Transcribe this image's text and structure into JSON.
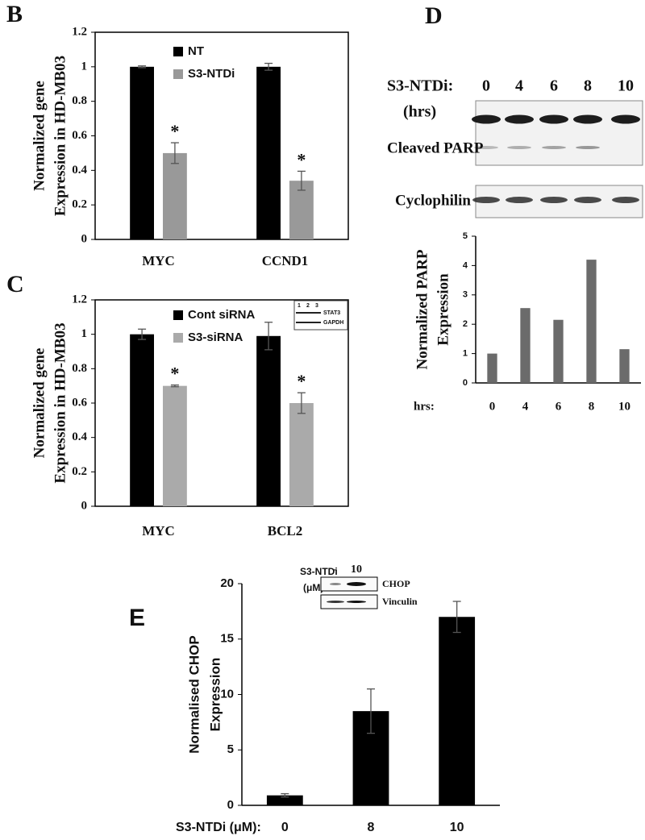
{
  "chart_data": [
    {
      "type": "bar",
      "panel": "B",
      "ylabel": [
        "Normalized gene",
        "Expression in HD-MB03"
      ],
      "categories": [
        "MYC",
        "CCND1"
      ],
      "series": [
        {
          "name": "NT",
          "color": "#000000",
          "values": [
            1.0,
            1.0
          ],
          "errors": [
            0.005,
            0.02
          ]
        },
        {
          "name": "S3-NTDi",
          "color": "#999999",
          "values": [
            0.5,
            0.34
          ],
          "errors": [
            0.06,
            0.055
          ],
          "significance": [
            "*",
            "*"
          ]
        }
      ],
      "ylim": [
        0,
        1.2
      ],
      "yticks": [
        0,
        0.2,
        0.4,
        0.6,
        0.8,
        1,
        1.2
      ],
      "grid": false,
      "legend": "top"
    },
    {
      "type": "bar",
      "panel": "C",
      "ylabel": [
        "Normalized gene",
        "Expression in HD-MB03"
      ],
      "inset": {
        "lanes": [
          "1",
          "2",
          "3"
        ],
        "bands": [
          "STAT3",
          "GAPDH"
        ]
      },
      "categories": [
        "MYC",
        "BCL2"
      ],
      "series": [
        {
          "name": "Cont siRNA",
          "color": "#000000",
          "values": [
            1.0,
            0.99
          ],
          "errors": [
            0.03,
            0.08
          ]
        },
        {
          "name": "S3-siRNA",
          "color": "#aaaaaa",
          "values": [
            0.7,
            0.6
          ],
          "errors": [
            0.005,
            0.06
          ],
          "significance": [
            "*",
            "*"
          ]
        }
      ],
      "ylim": [
        0,
        1.2
      ],
      "yticks": [
        0,
        0.2,
        0.4,
        0.6,
        0.8,
        1,
        1.2
      ],
      "grid": false,
      "legend": "top"
    },
    {
      "type": "bar",
      "panel": "D",
      "blot": {
        "treatment": "S3-NTDi:",
        "unit": "(hrs)",
        "lanes": [
          "0",
          "4",
          "6",
          "8",
          "10"
        ],
        "bands": [
          "Cleaved PARP",
          "Cyclophilin"
        ]
      },
      "ylabel": [
        "Normalized PARP",
        "Expression"
      ],
      "xlabel": "hrs:",
      "categories": [
        "0",
        "4",
        "6",
        "8",
        "10"
      ],
      "series": [
        {
          "color": "#6b6b6b",
          "values": [
            1,
            2.55,
            2.15,
            4.2,
            1.15
          ]
        }
      ],
      "ylim": [
        0,
        5
      ],
      "yticks": [
        0,
        1,
        2,
        3,
        4,
        5
      ],
      "grid": false
    },
    {
      "type": "bar",
      "panel": "E",
      "inset": {
        "treatment": "S3-NTDi",
        "unit": "(μM)",
        "lanes": [
          "-",
          "10"
        ],
        "bands": [
          "CHOP",
          "Vinculin"
        ]
      },
      "ylabel": [
        "Normalised CHOP",
        "Expression"
      ],
      "xlabel": "S3-NTDi (μM):",
      "categories": [
        "0",
        "8",
        "10"
      ],
      "series": [
        {
          "color": "#000000",
          "values": [
            0.9,
            8.5,
            17
          ],
          "errors": [
            0.15,
            2,
            1.4
          ]
        }
      ],
      "ylim": [
        0,
        20
      ],
      "yticks": [
        0,
        5,
        10,
        15,
        20
      ],
      "grid": false
    }
  ]
}
